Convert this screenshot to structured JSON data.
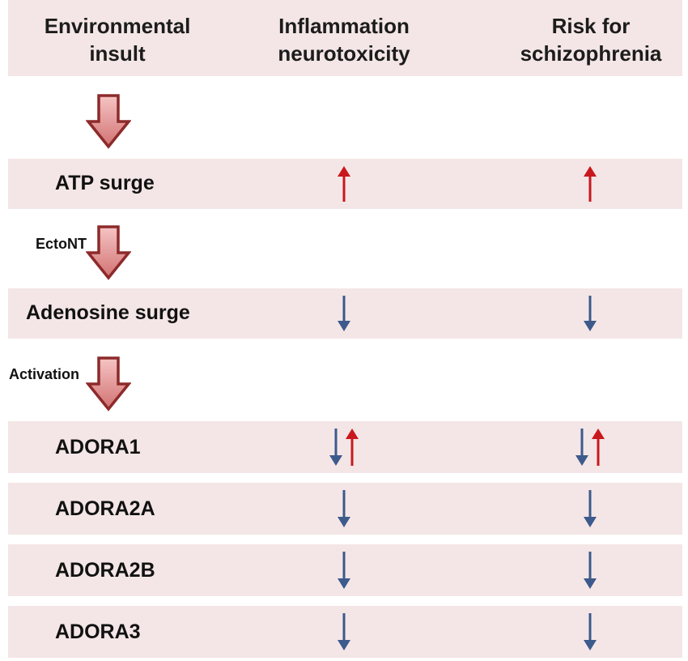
{
  "colors": {
    "band": "#f4e6e6",
    "big_arrow_fill_top": "#f6c4c4",
    "big_arrow_fill_bottom": "#d27272",
    "big_arrow_stroke": "#8d2a2a",
    "up": "#c8181e",
    "down": "#3d5a8c"
  },
  "header": {
    "col1_line1": "Environmental",
    "col1_line2": "insult",
    "col2_line1": "Inflammation",
    "col2_line2": "neurotoxicity",
    "col3_line1": "Risk for",
    "col3_line2": "schizophrenia"
  },
  "steps": [
    {
      "label": ""
    },
    {
      "label": "EctoNT"
    },
    {
      "label": "Activation"
    }
  ],
  "rows": [
    {
      "label": "ATP surge",
      "inflammation": [
        "up"
      ],
      "risk": [
        "up"
      ]
    },
    {
      "label": "Adenosine surge",
      "inflammation": [
        "down"
      ],
      "risk": [
        "down"
      ]
    },
    {
      "label": "ADORA1",
      "inflammation": [
        "down",
        "up"
      ],
      "risk": [
        "down",
        "up"
      ]
    },
    {
      "label": "ADORA2A",
      "inflammation": [
        "down"
      ],
      "risk": [
        "down"
      ]
    },
    {
      "label": "ADORA2B",
      "inflammation": [
        "down"
      ],
      "risk": [
        "down"
      ]
    },
    {
      "label": "ADORA3",
      "inflammation": [
        "down"
      ],
      "risk": [
        "down"
      ]
    }
  ]
}
